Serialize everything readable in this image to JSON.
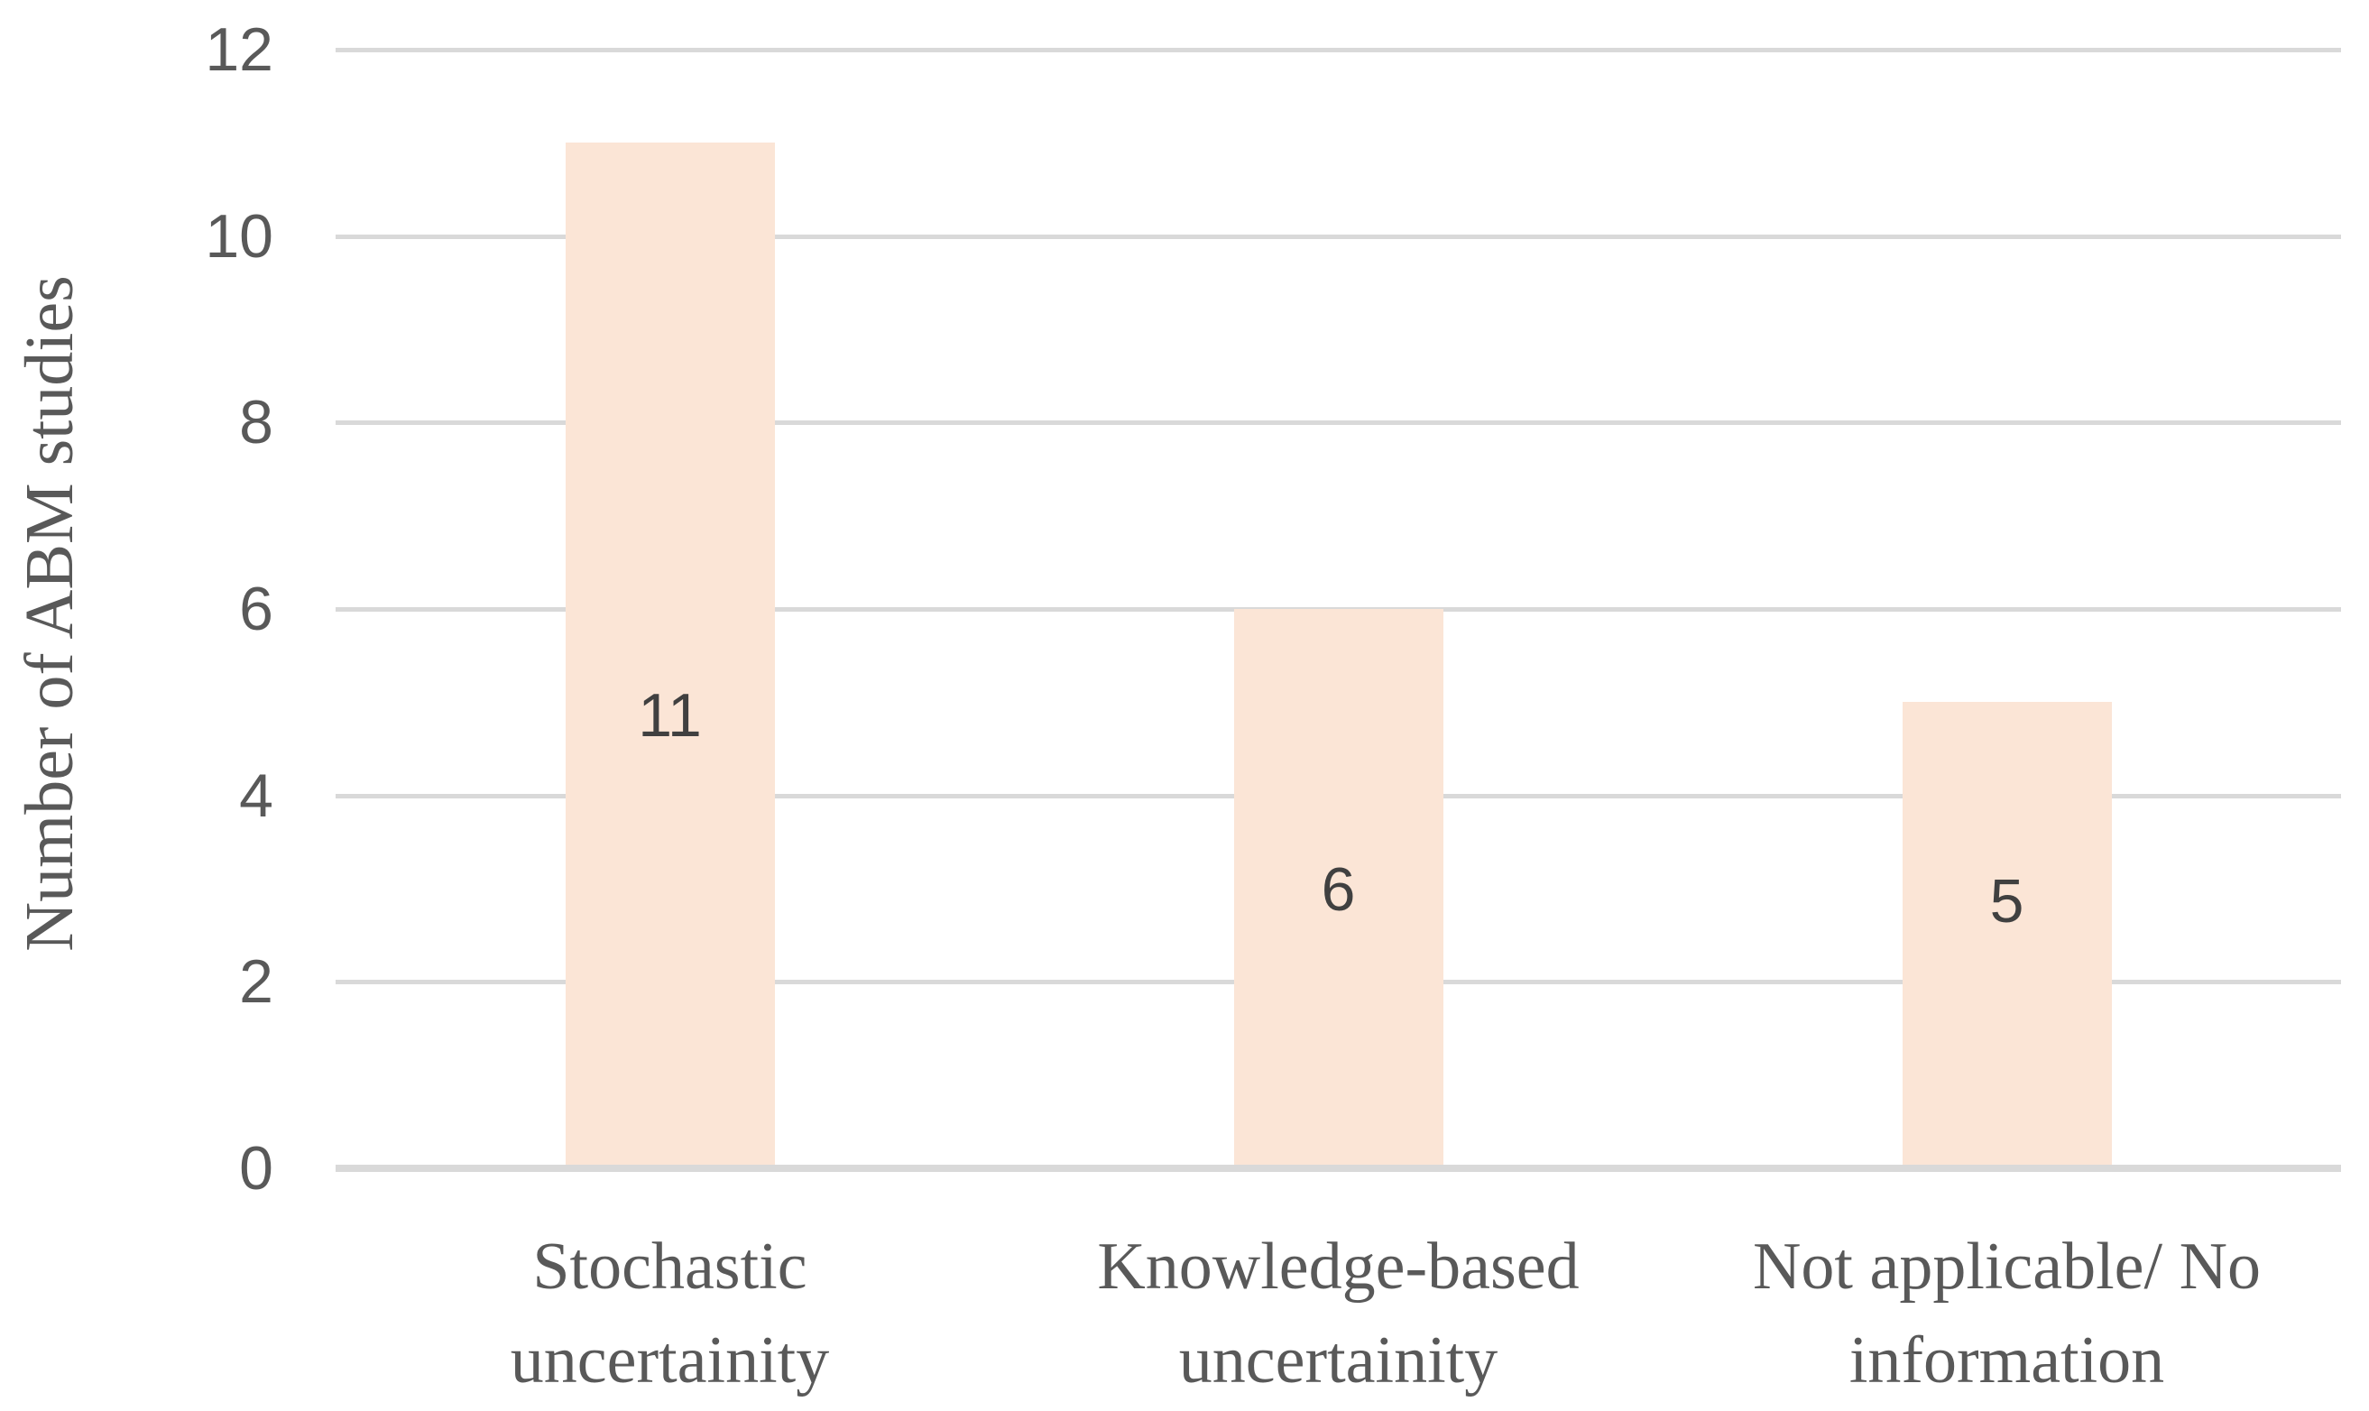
{
  "chart_data": {
    "type": "bar",
    "title": "",
    "xlabel": "",
    "ylabel": "Number of ABM studies",
    "categories": [
      "Stochastic uncertainity",
      "Knowledge-based uncertainity",
      "Not applicable/ No information"
    ],
    "category_lines": [
      [
        "Stochastic",
        "uncertainity"
      ],
      [
        "Knowledge-based",
        "uncertainity"
      ],
      [
        "Not applicable/ No",
        "information"
      ]
    ],
    "values": [
      11,
      6,
      5
    ],
    "data_labels": [
      "11",
      "6",
      "5"
    ],
    "ylim": [
      0,
      12
    ],
    "yticks": [
      0,
      2,
      4,
      6,
      8,
      10,
      12
    ],
    "grid": "horizontal-only",
    "legend": "none",
    "colors": {
      "bar_fill": "#FBE5D6",
      "gridline": "#D9D9D9",
      "axis_line": "#D9D9D9",
      "tick_text": "#595959",
      "category_text": "#595959",
      "axis_title_text": "#595959",
      "data_label_text": "#404040",
      "background": "#FFFFFF"
    }
  }
}
